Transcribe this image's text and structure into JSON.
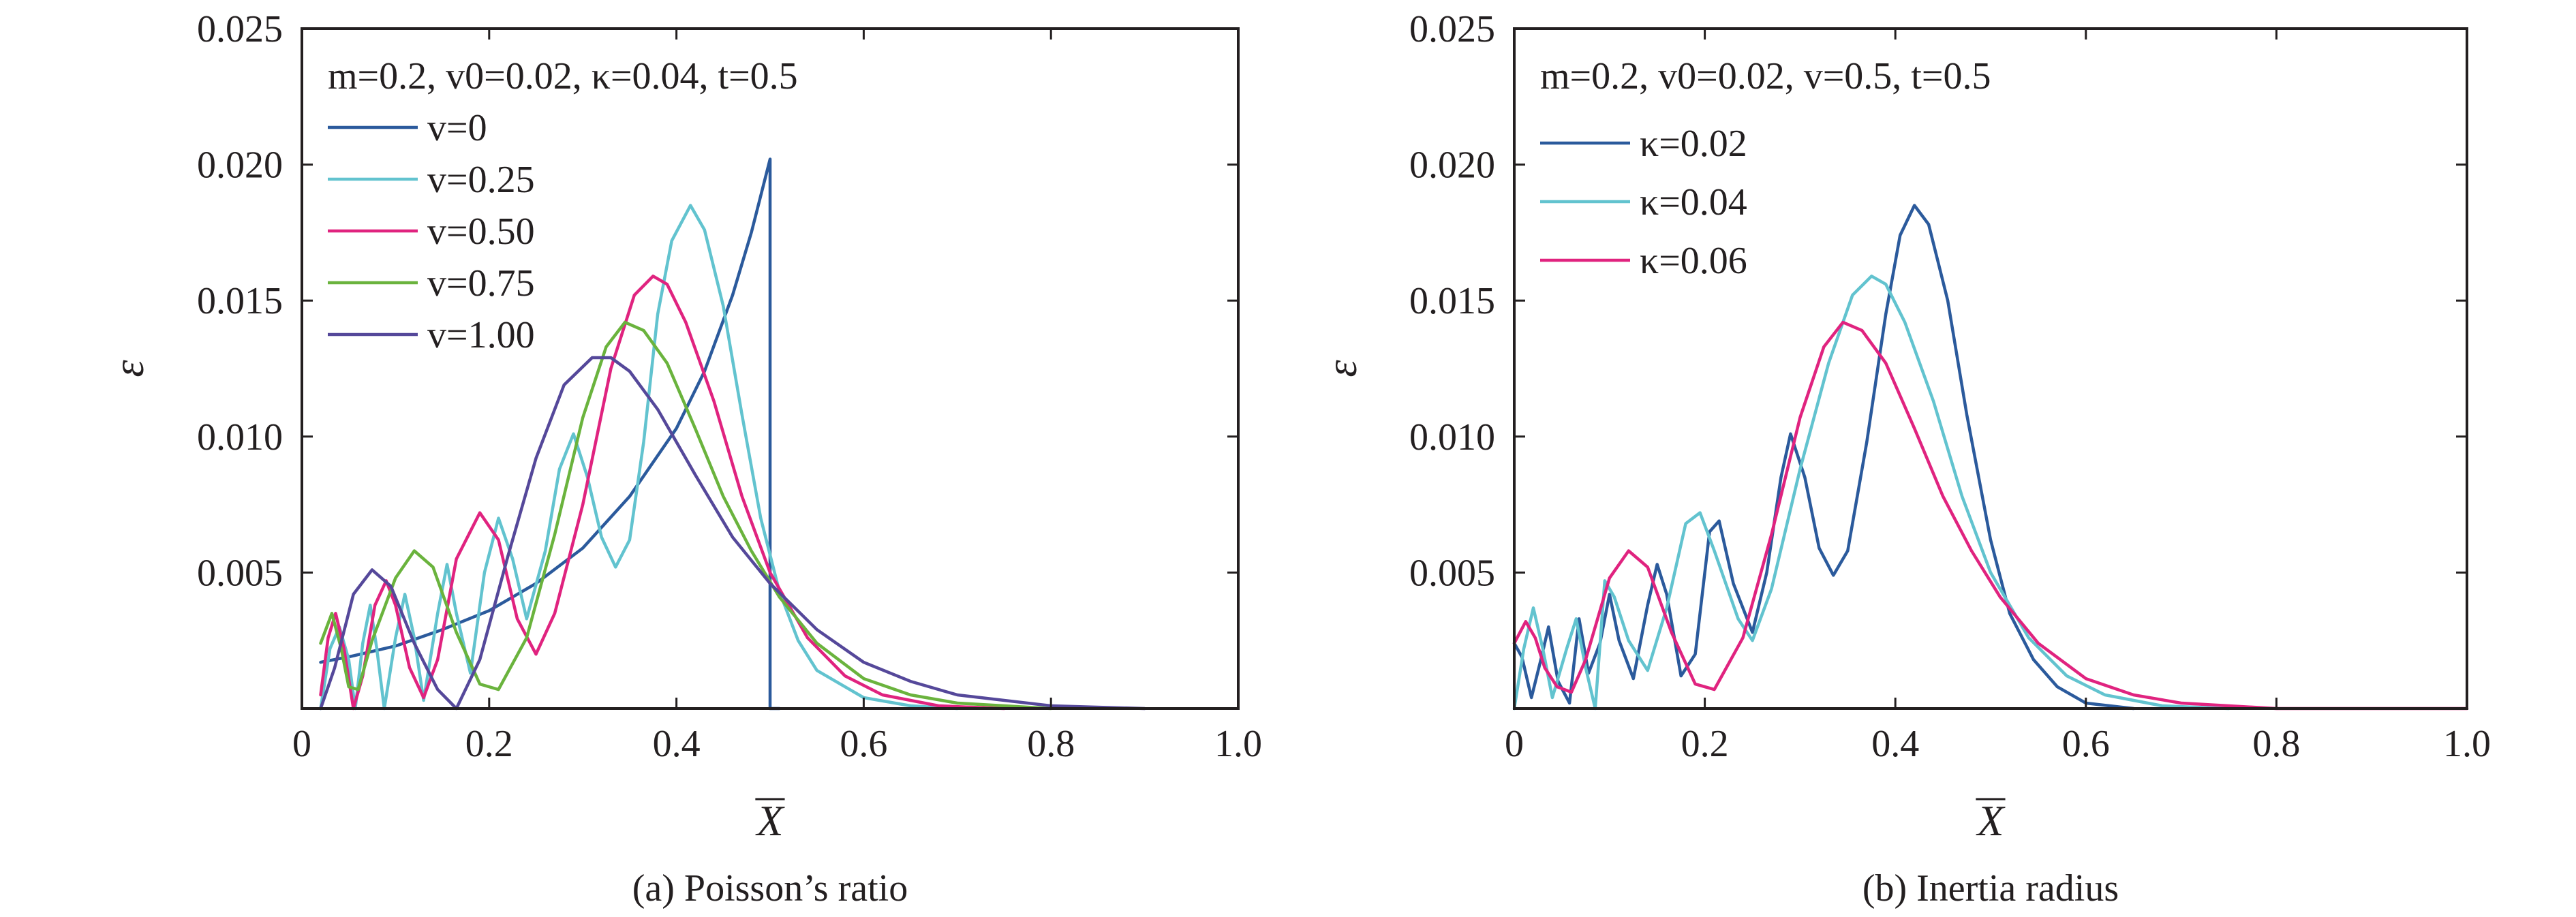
{
  "colors": {
    "dark_blue": "#2b5a9c",
    "cyan": "#62c3cf",
    "magenta": "#e0237f",
    "green": "#6ab33d",
    "purple": "#55489a",
    "axis": "#231f20"
  },
  "chart_data": [
    {
      "type": "line",
      "caption": "(a) Poisson’s ratio",
      "params_label": "m=0.2, v0=0.02, κ=0.04, t=0.5",
      "xlabel": "X",
      "ylabel": "ε",
      "xlim": [
        0,
        1.0
      ],
      "ylim": [
        0,
        0.025
      ],
      "x_ticks": [
        "0",
        "0.2",
        "0.4",
        "0.6",
        "0.8",
        "1.0"
      ],
      "y_ticks": [
        "0.005",
        "0.010",
        "0.015",
        "0.020",
        "0.025"
      ],
      "grid": false,
      "legend_position": "top-left",
      "series": [
        {
          "name": "v=0",
          "color": "#2b5a9c",
          "points": [
            [
              0.02,
              0.0017
            ],
            [
              0.05,
              0.0019
            ],
            [
              0.1,
              0.0023
            ],
            [
              0.15,
              0.0029
            ],
            [
              0.2,
              0.0036
            ],
            [
              0.25,
              0.0046
            ],
            [
              0.3,
              0.0059
            ],
            [
              0.35,
              0.0078
            ],
            [
              0.4,
              0.0103
            ],
            [
              0.43,
              0.0124
            ],
            [
              0.46,
              0.0152
            ],
            [
              0.48,
              0.0175
            ],
            [
              0.5,
              0.0202
            ],
            [
              0.5,
              0.0
            ],
            [
              0.51,
              0.0
            ]
          ]
        },
        {
          "name": "v=0.25",
          "color": "#62c3cf",
          "points": [
            [
              0.02,
              0.0
            ],
            [
              0.03,
              0.0022
            ],
            [
              0.04,
              0.003
            ],
            [
              0.05,
              0.0018
            ],
            [
              0.057,
              0.0
            ],
            [
              0.065,
              0.0024
            ],
            [
              0.073,
              0.0038
            ],
            [
              0.08,
              0.0022
            ],
            [
              0.088,
              0.0
            ],
            [
              0.1,
              0.0026
            ],
            [
              0.11,
              0.0042
            ],
            [
              0.12,
              0.0026
            ],
            [
              0.13,
              0.0003
            ],
            [
              0.145,
              0.0035
            ],
            [
              0.155,
              0.0053
            ],
            [
              0.165,
              0.0035
            ],
            [
              0.18,
              0.0013
            ],
            [
              0.195,
              0.005
            ],
            [
              0.21,
              0.007
            ],
            [
              0.225,
              0.0055
            ],
            [
              0.24,
              0.0033
            ],
            [
              0.26,
              0.0058
            ],
            [
              0.275,
              0.0088
            ],
            [
              0.29,
              0.0101
            ],
            [
              0.305,
              0.0085
            ],
            [
              0.32,
              0.0063
            ],
            [
              0.335,
              0.0052
            ],
            [
              0.35,
              0.0062
            ],
            [
              0.365,
              0.0098
            ],
            [
              0.38,
              0.0145
            ],
            [
              0.395,
              0.0172
            ],
            [
              0.415,
              0.0185
            ],
            [
              0.43,
              0.0176
            ],
            [
              0.45,
              0.0148
            ],
            [
              0.47,
              0.0108
            ],
            [
              0.49,
              0.007
            ],
            [
              0.51,
              0.0043
            ],
            [
              0.53,
              0.0025
            ],
            [
              0.55,
              0.0014
            ],
            [
              0.6,
              0.0004
            ],
            [
              0.65,
              0.0001
            ],
            [
              0.7,
              0.0
            ]
          ]
        },
        {
          "name": "v=0.50",
          "color": "#e0237f",
          "points": [
            [
              0.02,
              0.0005
            ],
            [
              0.028,
              0.0026
            ],
            [
              0.036,
              0.0035
            ],
            [
              0.045,
              0.0022
            ],
            [
              0.055,
              0.0
            ],
            [
              0.065,
              0.0012
            ],
            [
              0.078,
              0.0038
            ],
            [
              0.09,
              0.0047
            ],
            [
              0.1,
              0.0038
            ],
            [
              0.115,
              0.0015
            ],
            [
              0.13,
              0.0004
            ],
            [
              0.145,
              0.0018
            ],
            [
              0.165,
              0.0055
            ],
            [
              0.19,
              0.0072
            ],
            [
              0.21,
              0.0062
            ],
            [
              0.23,
              0.0033
            ],
            [
              0.25,
              0.002
            ],
            [
              0.27,
              0.0035
            ],
            [
              0.3,
              0.0075
            ],
            [
              0.33,
              0.0125
            ],
            [
              0.355,
              0.0152
            ],
            [
              0.375,
              0.0159
            ],
            [
              0.39,
              0.0156
            ],
            [
              0.41,
              0.0142
            ],
            [
              0.44,
              0.0113
            ],
            [
              0.47,
              0.0078
            ],
            [
              0.5,
              0.005
            ],
            [
              0.54,
              0.0026
            ],
            [
              0.58,
              0.0012
            ],
            [
              0.62,
              0.0005
            ],
            [
              0.68,
              0.0001
            ],
            [
              0.75,
              0.0
            ]
          ]
        },
        {
          "name": "v=0.75",
          "color": "#6ab33d",
          "points": [
            [
              0.02,
              0.0024
            ],
            [
              0.032,
              0.0035
            ],
            [
              0.042,
              0.0022
            ],
            [
              0.05,
              0.0008
            ],
            [
              0.06,
              0.0007
            ],
            [
              0.075,
              0.0025
            ],
            [
              0.1,
              0.0048
            ],
            [
              0.12,
              0.0058
            ],
            [
              0.14,
              0.0052
            ],
            [
              0.165,
              0.0028
            ],
            [
              0.19,
              0.0009
            ],
            [
              0.21,
              0.0007
            ],
            [
              0.24,
              0.0026
            ],
            [
              0.27,
              0.0064
            ],
            [
              0.3,
              0.0107
            ],
            [
              0.325,
              0.0133
            ],
            [
              0.345,
              0.0142
            ],
            [
              0.365,
              0.0139
            ],
            [
              0.39,
              0.0127
            ],
            [
              0.42,
              0.0103
            ],
            [
              0.45,
              0.0078
            ],
            [
              0.48,
              0.0058
            ],
            [
              0.51,
              0.0041
            ],
            [
              0.55,
              0.0024
            ],
            [
              0.6,
              0.0011
            ],
            [
              0.65,
              0.0005
            ],
            [
              0.7,
              0.0002
            ],
            [
              0.8,
              0.0
            ]
          ]
        },
        {
          "name": "v=1.00",
          "color": "#55489a",
          "points": [
            [
              0.02,
              0.0
            ],
            [
              0.035,
              0.0015
            ],
            [
              0.055,
              0.0042
            ],
            [
              0.075,
              0.0051
            ],
            [
              0.095,
              0.0045
            ],
            [
              0.12,
              0.0024
            ],
            [
              0.145,
              0.0007
            ],
            [
              0.165,
              0.0
            ],
            [
              0.19,
              0.0018
            ],
            [
              0.22,
              0.0056
            ],
            [
              0.25,
              0.0092
            ],
            [
              0.28,
              0.0119
            ],
            [
              0.31,
              0.0129
            ],
            [
              0.33,
              0.0129
            ],
            [
              0.35,
              0.0124
            ],
            [
              0.38,
              0.011
            ],
            [
              0.42,
              0.0086
            ],
            [
              0.46,
              0.0063
            ],
            [
              0.5,
              0.0046
            ],
            [
              0.55,
              0.0029
            ],
            [
              0.6,
              0.0017
            ],
            [
              0.65,
              0.001
            ],
            [
              0.7,
              0.0005
            ],
            [
              0.8,
              0.0001
            ],
            [
              0.9,
              0.0
            ]
          ]
        }
      ]
    },
    {
      "type": "line",
      "caption": "(b) Inertia radius",
      "params_label": "m=0.2, v0=0.02, v=0.5, t=0.5",
      "xlabel": "X",
      "ylabel": "ε",
      "xlim": [
        0,
        1.0
      ],
      "ylim": [
        0,
        0.025
      ],
      "x_ticks": [
        "0",
        "0.2",
        "0.4",
        "0.6",
        "0.8",
        "1.0"
      ],
      "y_ticks": [
        "0.005",
        "0.010",
        "0.015",
        "0.020",
        "0.025"
      ],
      "grid": false,
      "legend_position": "top-left",
      "series": [
        {
          "name": "κ=0.02",
          "color": "#2b5a9c",
          "points": [
            [
              0.0,
              0.0024
            ],
            [
              0.008,
              0.0019
            ],
            [
              0.018,
              0.0004
            ],
            [
              0.028,
              0.0018
            ],
            [
              0.036,
              0.003
            ],
            [
              0.046,
              0.001
            ],
            [
              0.058,
              0.0002
            ],
            [
              0.068,
              0.0033
            ],
            [
              0.078,
              0.0013
            ],
            [
              0.09,
              0.0024
            ],
            [
              0.1,
              0.0042
            ],
            [
              0.11,
              0.0025
            ],
            [
              0.125,
              0.0011
            ],
            [
              0.14,
              0.0038
            ],
            [
              0.15,
              0.0053
            ],
            [
              0.16,
              0.0042
            ],
            [
              0.175,
              0.0012
            ],
            [
              0.19,
              0.002
            ],
            [
              0.205,
              0.0065
            ],
            [
              0.215,
              0.0069
            ],
            [
              0.23,
              0.0046
            ],
            [
              0.25,
              0.0028
            ],
            [
              0.265,
              0.005
            ],
            [
              0.28,
              0.0085
            ],
            [
              0.29,
              0.0101
            ],
            [
              0.305,
              0.0085
            ],
            [
              0.32,
              0.0059
            ],
            [
              0.335,
              0.0049
            ],
            [
              0.35,
              0.0058
            ],
            [
              0.37,
              0.0098
            ],
            [
              0.39,
              0.0145
            ],
            [
              0.405,
              0.0174
            ],
            [
              0.42,
              0.0185
            ],
            [
              0.435,
              0.0178
            ],
            [
              0.455,
              0.015
            ],
            [
              0.475,
              0.0108
            ],
            [
              0.5,
              0.0062
            ],
            [
              0.52,
              0.0035
            ],
            [
              0.545,
              0.0018
            ],
            [
              0.57,
              0.0008
            ],
            [
              0.6,
              0.0002
            ],
            [
              0.65,
              0.0
            ]
          ]
        },
        {
          "name": "κ=0.04",
          "color": "#62c3cf",
          "points": [
            [
              0.0,
              0.0
            ],
            [
              0.01,
              0.0022
            ],
            [
              0.02,
              0.0037
            ],
            [
              0.03,
              0.0022
            ],
            [
              0.04,
              0.0004
            ],
            [
              0.055,
              0.0022
            ],
            [
              0.065,
              0.0033
            ],
            [
              0.075,
              0.0015
            ],
            [
              0.085,
              0.0
            ],
            [
              0.095,
              0.0047
            ],
            [
              0.105,
              0.0041
            ],
            [
              0.12,
              0.0025
            ],
            [
              0.14,
              0.0014
            ],
            [
              0.16,
              0.0037
            ],
            [
              0.18,
              0.0068
            ],
            [
              0.195,
              0.0072
            ],
            [
              0.21,
              0.0058
            ],
            [
              0.235,
              0.0033
            ],
            [
              0.25,
              0.0025
            ],
            [
              0.27,
              0.0044
            ],
            [
              0.3,
              0.0088
            ],
            [
              0.33,
              0.0127
            ],
            [
              0.355,
              0.0152
            ],
            [
              0.375,
              0.0159
            ],
            [
              0.39,
              0.0156
            ],
            [
              0.41,
              0.0142
            ],
            [
              0.44,
              0.0113
            ],
            [
              0.47,
              0.0078
            ],
            [
              0.5,
              0.005
            ],
            [
              0.54,
              0.0026
            ],
            [
              0.58,
              0.0012
            ],
            [
              0.62,
              0.0005
            ],
            [
              0.68,
              0.0001
            ],
            [
              0.75,
              0.0
            ]
          ]
        },
        {
          "name": "κ=0.06",
          "color": "#e0237f",
          "points": [
            [
              0.0,
              0.0024
            ],
            [
              0.012,
              0.0032
            ],
            [
              0.022,
              0.0026
            ],
            [
              0.032,
              0.0015
            ],
            [
              0.045,
              0.0008
            ],
            [
              0.06,
              0.0006
            ],
            [
              0.075,
              0.0018
            ],
            [
              0.1,
              0.0048
            ],
            [
              0.12,
              0.0058
            ],
            [
              0.14,
              0.0052
            ],
            [
              0.165,
              0.0028
            ],
            [
              0.19,
              0.0009
            ],
            [
              0.21,
              0.0007
            ],
            [
              0.24,
              0.0026
            ],
            [
              0.27,
              0.0064
            ],
            [
              0.3,
              0.0107
            ],
            [
              0.325,
              0.0133
            ],
            [
              0.345,
              0.0142
            ],
            [
              0.365,
              0.0139
            ],
            [
              0.39,
              0.0127
            ],
            [
              0.42,
              0.0103
            ],
            [
              0.45,
              0.0078
            ],
            [
              0.48,
              0.0058
            ],
            [
              0.51,
              0.0041
            ],
            [
              0.55,
              0.0024
            ],
            [
              0.6,
              0.0011
            ],
            [
              0.65,
              0.0005
            ],
            [
              0.7,
              0.0002
            ],
            [
              0.8,
              0.0
            ],
            [
              1.0,
              0.0
            ]
          ]
        }
      ]
    }
  ]
}
